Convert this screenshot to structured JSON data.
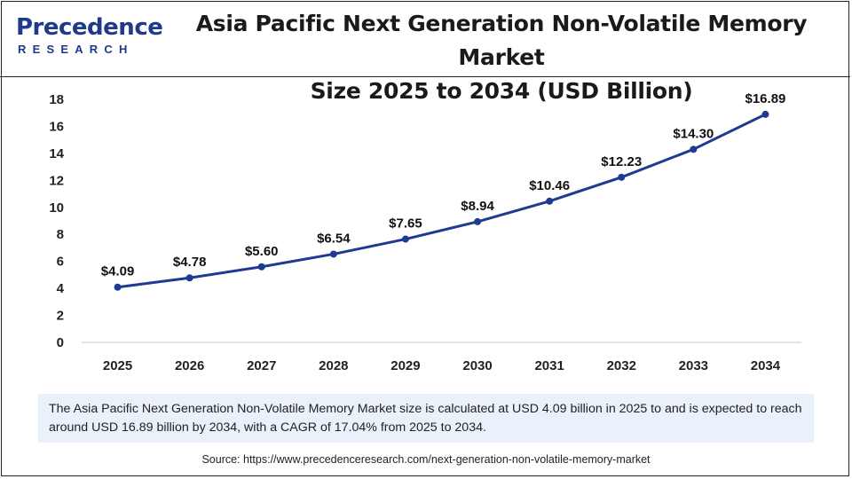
{
  "logo": {
    "main": "Precedence",
    "sub": "RESEARCH"
  },
  "header": {
    "title_line1": "Asia Pacific Next Generation Non-Volatile Memory Market",
    "title_line2": "Size 2025 to 2034 (USD Billion)"
  },
  "chart_data": {
    "type": "line",
    "title": "Asia Pacific Next Generation Non-Volatile Memory Market Size 2025 to 2034 (USD Billion)",
    "categories": [
      "2025",
      "2026",
      "2027",
      "2028",
      "2029",
      "2030",
      "2031",
      "2032",
      "2033",
      "2034"
    ],
    "values": [
      4.09,
      4.78,
      5.6,
      6.54,
      7.65,
      8.94,
      10.46,
      12.23,
      14.3,
      16.89
    ],
    "labels": [
      "$4.09",
      "$4.78",
      "$5.60",
      "$6.54",
      "$7.65",
      "$8.94",
      "$10.46",
      "$12.23",
      "$14.30",
      "$16.89"
    ],
    "yticks": [
      "0",
      "2",
      "4",
      "6",
      "8",
      "10",
      "12",
      "14",
      "16",
      "18"
    ],
    "ylim": [
      0,
      18
    ],
    "xlabel": "",
    "ylabel": "",
    "line_color": "#1f3a93"
  },
  "note": "The Asia Pacific Next Generation Non-Volatile Memory Market size is calculated at USD 4.09 billion in 2025 to and is expected to reach around USD 16.89 billion by 2034, with a CAGR of 17.04% from 2025 to 2034.",
  "source": "Source: https://www.precedenceresearch.com/next-generation-non-volatile-memory-market"
}
